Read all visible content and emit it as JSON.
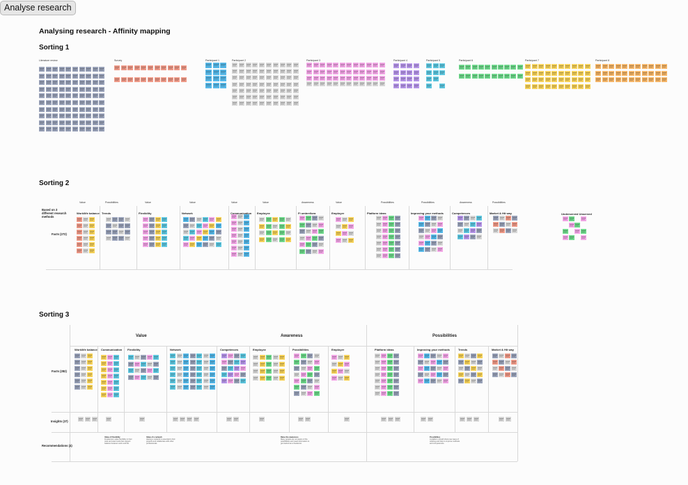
{
  "toolbar": {
    "button_label": "Analyse research"
  },
  "page": {
    "title": "Analysing research - Affinity mapping"
  },
  "sorting1": {
    "title": "Sorting 1",
    "groups": [
      {
        "label": "Literature review"
      },
      {
        "label": "Survey"
      },
      {
        "label": "Participant 1"
      },
      {
        "label": "Participant 2"
      },
      {
        "label": "Participant 3"
      },
      {
        "label": "Participant 4"
      },
      {
        "label": "Participant 5"
      },
      {
        "label": "Participant 6"
      },
      {
        "label": "Participant 7"
      },
      {
        "label": "Participant 8"
      }
    ]
  },
  "sorting2": {
    "title": "Sorting 2",
    "row_label_1": "Based on 3 different research methods",
    "row_label_2": "Facts (272)",
    "top_labels": [
      "Value",
      "Possibilities",
      "Value",
      "Value",
      "Value",
      "Value",
      "Awareness",
      "Value",
      "Possibilities",
      "Possibilities",
      "Awareness",
      "Possibilities"
    ],
    "columns": [
      "Work/life balance",
      "Trends",
      "Flexibility",
      "Network",
      "Communication",
      "Employee",
      "Fi umbrellora",
      "Employer",
      "Platform ideas",
      "Improving your methods",
      "Competences",
      "Market & Hit way"
    ],
    "extra_label": "Underserved Unserved"
  },
  "sorting3": {
    "title": "Sorting 3",
    "bands": [
      "Value",
      "Awareness",
      "Possibilities"
    ],
    "columns": [
      "Work/life balance",
      "Communication",
      "Flexibility",
      "Network",
      "Competences",
      "Employee",
      "Possibilities",
      "Employer",
      "Platform ideas",
      "Improving your methods",
      "Trends",
      "Market & Hit way"
    ],
    "row_labels": [
      "Facts (282)",
      "Insights (37)",
      "Recommendations (4)"
    ],
    "recommendations": [
      {
        "title": "Value of Flexibility",
        "text": "Freelancers value flexibility in their work and want tools that support balance between work and life."
      },
      {
        "title": "Value of a network",
        "text": "Having a network is essential to find projects and collaborate with other professionals."
      },
      {
        "title": "Raise the awareness",
        "text": "Many people are not aware of the possibilities and need information to get started as a freelancer."
      },
      {
        "title": "Possibilities",
        "text": "A platform should show new ways of working and help to improve methods and competences."
      }
    ]
  },
  "colors": {
    "slate": "#9aa3ba",
    "grey": "#d8d8d8",
    "salmon": "#ef9a88",
    "blue": "#56b8e8",
    "pink": "#f2a6e6",
    "purple": "#b797ea",
    "teal": "#5ec7e0",
    "green": "#6fd98c",
    "yellow": "#f6d25a",
    "orange": "#f5b567"
  }
}
